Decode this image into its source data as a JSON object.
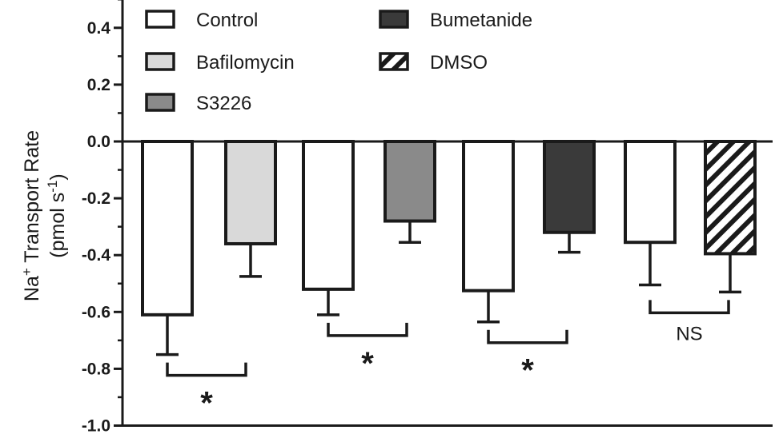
{
  "chart_data": {
    "type": "bar",
    "ylabel_line1": "Na",
    "ylabel_sup1": "+",
    "ylabel_line1_rest": " Transport Rate",
    "ylabel_line2": "(pmol s",
    "ylabel_sup2": "-1",
    "ylabel_line2_rest": ")",
    "ylim": [
      -1.0,
      0.5
    ],
    "yticks": [
      {
        "value": 0.4,
        "label": "0.4"
      },
      {
        "value": 0.2,
        "label": "0.2"
      },
      {
        "value": 0.0,
        "label": "0.0"
      },
      {
        "value": -0.2,
        "label": "-0.2"
      },
      {
        "value": -0.4,
        "label": "-0.4"
      },
      {
        "value": -0.6,
        "label": "-0.6"
      },
      {
        "value": -0.8,
        "label": "-0.8"
      },
      {
        "value": -1.0,
        "label": "-1.0"
      }
    ],
    "legend": [
      {
        "name": "Control",
        "color": "#ffffff",
        "pattern": "none"
      },
      {
        "name": "Bafilomycin",
        "color": "#d9d9d9",
        "pattern": "none"
      },
      {
        "name": "S3226",
        "color": "#8a8a8a",
        "pattern": "none"
      },
      {
        "name": "Bumetanide",
        "color": "#3a3a3a",
        "pattern": "none"
      },
      {
        "name": "DMSO",
        "color": "#ffffff",
        "pattern": "hatch"
      }
    ],
    "bars": [
      {
        "series": "Control",
        "value": -0.61,
        "error": 0.14
      },
      {
        "series": "Bafilomycin",
        "value": -0.36,
        "error": 0.115
      },
      {
        "series": "Control",
        "value": -0.52,
        "error": 0.09
      },
      {
        "series": "S3226",
        "value": -0.28,
        "error": 0.075
      },
      {
        "series": "Control",
        "value": -0.525,
        "error": 0.11
      },
      {
        "series": "Bumetanide",
        "value": -0.32,
        "error": 0.07
      },
      {
        "series": "Control",
        "value": -0.355,
        "error": 0.15
      },
      {
        "series": "DMSO",
        "value": -0.395,
        "error": 0.135
      }
    ],
    "significance": [
      {
        "pair": [
          0,
          1
        ],
        "label": "*"
      },
      {
        "pair": [
          2,
          3
        ],
        "label": "*"
      },
      {
        "pair": [
          4,
          5
        ],
        "label": "*"
      },
      {
        "pair": [
          6,
          7
        ],
        "label": "NS"
      }
    ]
  }
}
